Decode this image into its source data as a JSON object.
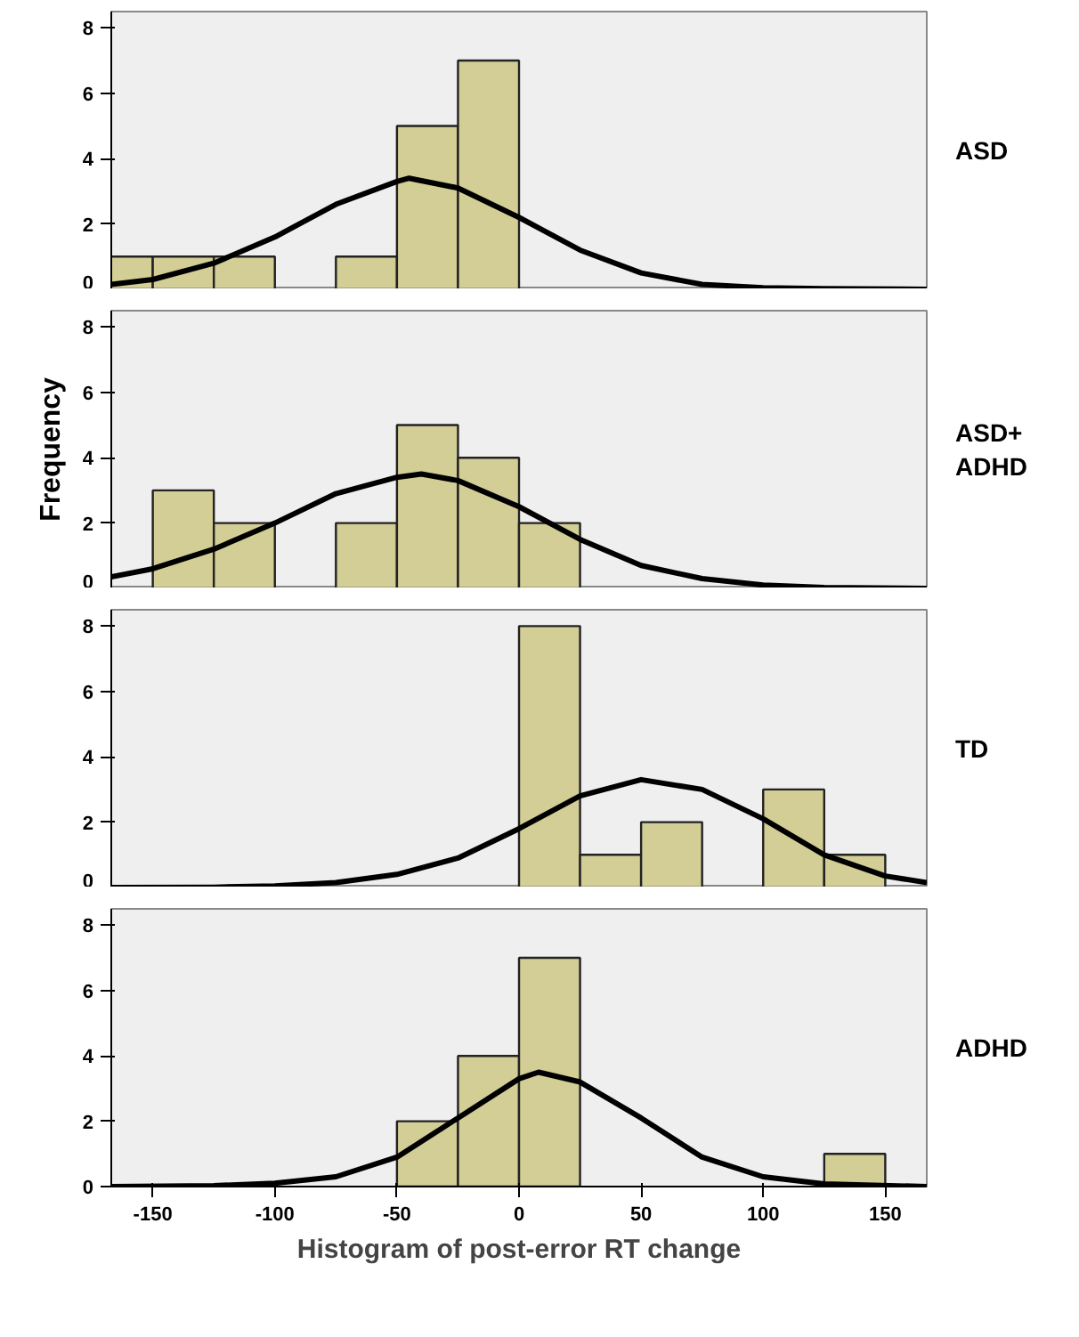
{
  "chart_data": [
    {
      "type": "histogram",
      "annotations": [
        "ASD"
      ],
      "bins": [
        -175,
        -150,
        -125,
        -100,
        -75,
        -50,
        -25,
        0,
        25,
        50,
        75,
        100,
        125,
        150
      ],
      "values": [
        1,
        1,
        1,
        0,
        1,
        5,
        7,
        0,
        0,
        0,
        0,
        0,
        0
      ],
      "color": "#d3cd96",
      "xlim": [
        -167,
        167
      ],
      "ylim": [
        0,
        8.5
      ],
      "yticks": [
        0,
        2,
        4,
        6,
        8
      ],
      "tick_labels": "y",
      "grid": false,
      "series": [
        {
          "type": "line",
          "color": "#000000",
          "x": [
            -167,
            -150,
            -125,
            -100,
            -75,
            -50,
            -45,
            -25,
            0,
            25,
            50,
            75,
            100,
            125,
            167
          ],
          "values": [
            0.15,
            0.3,
            0.8,
            1.6,
            2.6,
            3.3,
            3.4,
            3.1,
            2.2,
            1.2,
            0.5,
            0.15,
            0.05,
            0.02,
            0
          ]
        }
      ]
    },
    {
      "type": "histogram",
      "annotations": [
        "ASD+\nADHD"
      ],
      "bins": [
        -175,
        -150,
        -125,
        -100,
        -75,
        -50,
        -25,
        0,
        25,
        50,
        75,
        100,
        125,
        150
      ],
      "values": [
        0,
        3,
        2,
        0,
        2,
        5,
        4,
        2,
        0,
        0,
        0,
        0,
        0
      ],
      "color": "#d3cd96",
      "xlim": [
        -167,
        167
      ],
      "ylim": [
        0,
        8.5
      ],
      "yticks": [
        0,
        2,
        4,
        6,
        8
      ],
      "tick_labels": "y",
      "grid": false,
      "ylabel": "Frequency",
      "series": [
        {
          "type": "line",
          "color": "#000000",
          "x": [
            -167,
            -150,
            -125,
            -100,
            -75,
            -50,
            -40,
            -25,
            0,
            25,
            50,
            75,
            100,
            125,
            167
          ],
          "values": [
            0.35,
            0.6,
            1.2,
            2.0,
            2.9,
            3.4,
            3.5,
            3.3,
            2.5,
            1.5,
            0.7,
            0.3,
            0.1,
            0.03,
            0
          ]
        }
      ]
    },
    {
      "type": "histogram",
      "annotations": [
        "TD"
      ],
      "bins": [
        -175,
        -150,
        -125,
        -100,
        -75,
        -50,
        -25,
        0,
        25,
        50,
        75,
        100,
        125,
        150
      ],
      "values": [
        0,
        0,
        0,
        0,
        0,
        0,
        0,
        8,
        1,
        2,
        0,
        3,
        1
      ],
      "color": "#d3cd96",
      "xlim": [
        -167,
        167
      ],
      "ylim": [
        0,
        8.5
      ],
      "yticks": [
        0,
        2,
        4,
        6,
        8
      ],
      "tick_labels": "y",
      "grid": false,
      "series": [
        {
          "type": "line",
          "color": "#000000",
          "x": [
            -167,
            -125,
            -100,
            -75,
            -50,
            -25,
            0,
            25,
            50,
            75,
            100,
            125,
            150,
            167
          ],
          "values": [
            0,
            0.01,
            0.05,
            0.15,
            0.4,
            0.9,
            1.8,
            2.8,
            3.3,
            3.0,
            2.1,
            1.0,
            0.35,
            0.15
          ]
        }
      ]
    },
    {
      "type": "histogram",
      "xlabel": "Histogram of post-error RT change",
      "annotations": [
        "ADHD"
      ],
      "bins": [
        -175,
        -150,
        -125,
        -100,
        -75,
        -50,
        -25,
        0,
        25,
        50,
        75,
        100,
        125,
        150
      ],
      "values": [
        0,
        0,
        0,
        0,
        0,
        2,
        4,
        7,
        0,
        0,
        0,
        0,
        1
      ],
      "color": "#d3cd96",
      "xlim": [
        -167,
        167
      ],
      "ylim": [
        0,
        8.5
      ],
      "yticks": [
        0,
        2,
        4,
        6,
        8
      ],
      "xticks": [
        -150,
        -100,
        -50,
        0,
        50,
        100,
        150
      ],
      "grid": false,
      "series": [
        {
          "type": "line",
          "color": "#000000",
          "x": [
            -167,
            -125,
            -100,
            -75,
            -50,
            -25,
            0,
            8,
            25,
            50,
            75,
            100,
            125,
            167
          ],
          "values": [
            0,
            0.03,
            0.1,
            0.3,
            0.9,
            2.1,
            3.3,
            3.5,
            3.2,
            2.1,
            0.9,
            0.3,
            0.08,
            0
          ]
        }
      ]
    }
  ]
}
